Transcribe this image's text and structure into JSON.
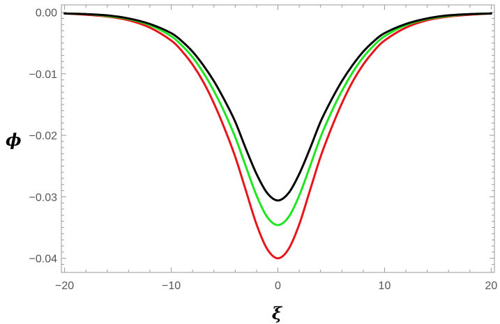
{
  "chart_data": {
    "type": "line",
    "title": "",
    "xlabel": "ξ",
    "ylabel": "ϕ",
    "xlim": [
      -20.3,
      20.3
    ],
    "ylim": [
      -0.0423,
      0.0012
    ],
    "x_ticks": [
      -20,
      -10,
      0,
      10,
      20
    ],
    "x_tick_labels": [
      "−20",
      "−10",
      "0",
      "10",
      "20"
    ],
    "y_ticks": [
      0.0,
      -0.01,
      -0.02,
      -0.03,
      -0.04
    ],
    "y_tick_labels": [
      "0.00",
      "−0.01",
      "−0.02",
      "−0.03",
      "−0.04"
    ],
    "grid": false,
    "series": [
      {
        "color": "#e8141b",
        "x": [
          -20,
          -18,
          -16,
          -14,
          -12,
          -10,
          -9,
          -8,
          -7,
          -6,
          -5,
          -4,
          -3,
          -2,
          -1,
          0,
          1,
          2,
          3,
          4,
          5,
          6,
          7,
          8,
          9,
          10,
          12,
          14,
          16,
          18,
          20
        ],
        "y": [
          -0.0002,
          -0.0004,
          -0.0007,
          -0.0013,
          -0.0025,
          -0.0046,
          -0.0063,
          -0.0085,
          -0.0113,
          -0.0148,
          -0.0189,
          -0.0235,
          -0.029,
          -0.0345,
          -0.0385,
          -0.04,
          -0.0385,
          -0.0345,
          -0.029,
          -0.0235,
          -0.0189,
          -0.0148,
          -0.0113,
          -0.0085,
          -0.0063,
          -0.0046,
          -0.0025,
          -0.0013,
          -0.0007,
          -0.0004,
          -0.0002
        ]
      },
      {
        "color": "#1ee61e",
        "x": [
          -20,
          -18,
          -16,
          -14,
          -12,
          -10,
          -9,
          -8,
          -7,
          -6,
          -5,
          -4,
          -3,
          -2,
          -1,
          0,
          1,
          2,
          3,
          4,
          5,
          6,
          7,
          8,
          9,
          10,
          12,
          14,
          16,
          18,
          20
        ],
        "y": [
          -0.0002,
          -0.0003,
          -0.0006,
          -0.0011,
          -0.0021,
          -0.0039,
          -0.0054,
          -0.0073,
          -0.0098,
          -0.0128,
          -0.0163,
          -0.0203,
          -0.0251,
          -0.0298,
          -0.0333,
          -0.0346,
          -0.0333,
          -0.0298,
          -0.0251,
          -0.0203,
          -0.0163,
          -0.0128,
          -0.0098,
          -0.0073,
          -0.0054,
          -0.0039,
          -0.0021,
          -0.0011,
          -0.0006,
          -0.0003,
          -0.0002
        ]
      },
      {
        "color": "#000000",
        "x": [
          -20,
          -18,
          -16,
          -14,
          -12,
          -10,
          -9,
          -8,
          -7,
          -6,
          -5,
          -4,
          -3,
          -2,
          -1,
          0,
          1,
          2,
          3,
          4,
          5,
          6,
          7,
          8,
          9,
          10,
          12,
          14,
          16,
          18,
          20
        ],
        "y": [
          -0.0002,
          -0.0003,
          -0.0005,
          -0.001,
          -0.0019,
          -0.0034,
          -0.0047,
          -0.0064,
          -0.0086,
          -0.0112,
          -0.0143,
          -0.0178,
          -0.0222,
          -0.0263,
          -0.0294,
          -0.0306,
          -0.0294,
          -0.0263,
          -0.0222,
          -0.0178,
          -0.0143,
          -0.0112,
          -0.0086,
          -0.0064,
          -0.0047,
          -0.0034,
          -0.0019,
          -0.001,
          -0.0005,
          -0.0003,
          -0.0002
        ]
      }
    ]
  }
}
